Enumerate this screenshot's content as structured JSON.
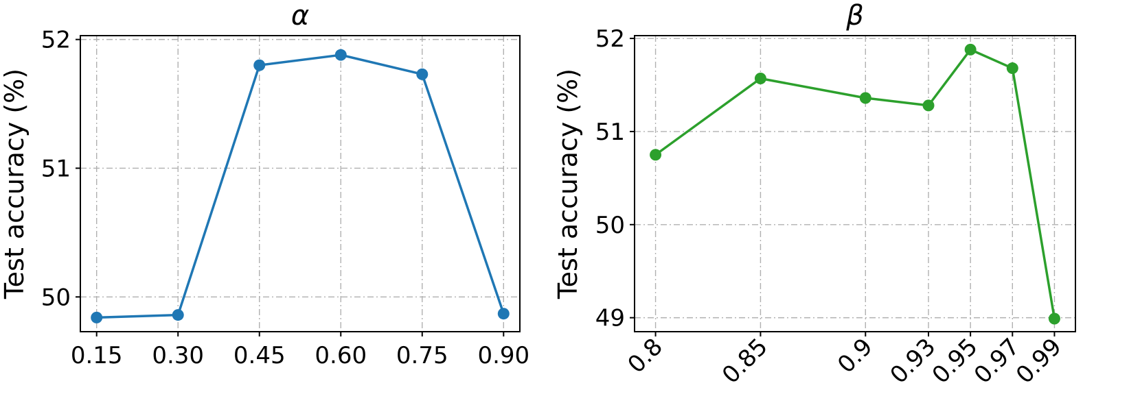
{
  "chart_data": [
    {
      "type": "line",
      "title": "α",
      "ylabel": "Test accuracy (%)",
      "xlabel": "",
      "categories": [
        "0.15",
        "0.30",
        "0.45",
        "0.60",
        "0.75",
        "0.90"
      ],
      "x_numeric": [
        0.15,
        0.3,
        0.45,
        0.6,
        0.75,
        0.9
      ],
      "xlim": [
        0.12,
        0.93
      ],
      "ylim": [
        49.73,
        52.03
      ],
      "yticks": [
        50,
        51,
        52
      ],
      "series": [
        {
          "values": [
            49.84,
            49.86,
            51.8,
            51.88,
            51.73,
            49.87
          ],
          "color": "#1f77b4"
        }
      ],
      "grid": true,
      "xtick_rotation": 0
    },
    {
      "type": "line",
      "title": "β",
      "ylabel": "Test accuracy (%)",
      "xlabel": "",
      "categories": [
        "0.8",
        "0.85",
        "0.9",
        "0.93",
        "0.95",
        "0.97",
        "0.99"
      ],
      "x_numeric": [
        0.8,
        0.85,
        0.9,
        0.93,
        0.95,
        0.97,
        0.99
      ],
      "xlim": [
        0.79,
        1.0
      ],
      "ylim": [
        48.85,
        52.03
      ],
      "yticks": [
        49,
        50,
        51,
        52
      ],
      "series": [
        {
          "values": [
            50.75,
            51.57,
            51.36,
            51.28,
            51.88,
            51.68,
            48.99
          ],
          "color": "#2ca02c"
        }
      ],
      "grid": true,
      "xtick_rotation": -45
    }
  ]
}
